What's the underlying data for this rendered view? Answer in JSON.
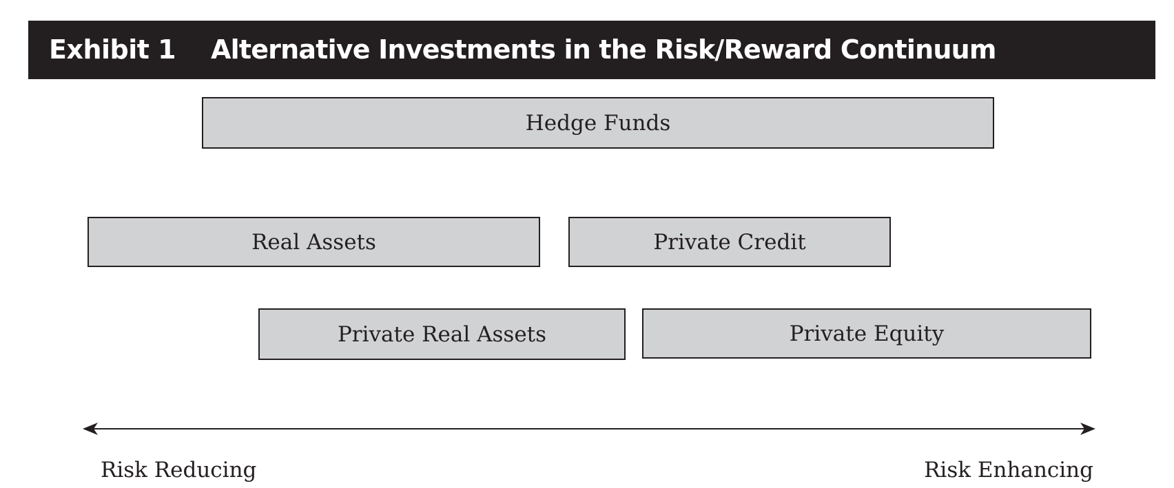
{
  "header": {
    "exhibit": "Exhibit 1",
    "title": "Alternative Investments in the Risk/Reward Continuum"
  },
  "boxes": {
    "hedge_funds": "Hedge Funds",
    "real_assets": "Real Assets",
    "private_credit": "Private Credit",
    "private_real_assets": "Private Real Assets",
    "private_equity": "Private Equity"
  },
  "axis": {
    "left_label": "Risk Reducing",
    "right_label": "Risk Enhancing"
  },
  "colors": {
    "header_bg": "#231f20",
    "header_text": "#ffffff",
    "box_fill": "#d1d2d4",
    "line": "#231f20"
  }
}
